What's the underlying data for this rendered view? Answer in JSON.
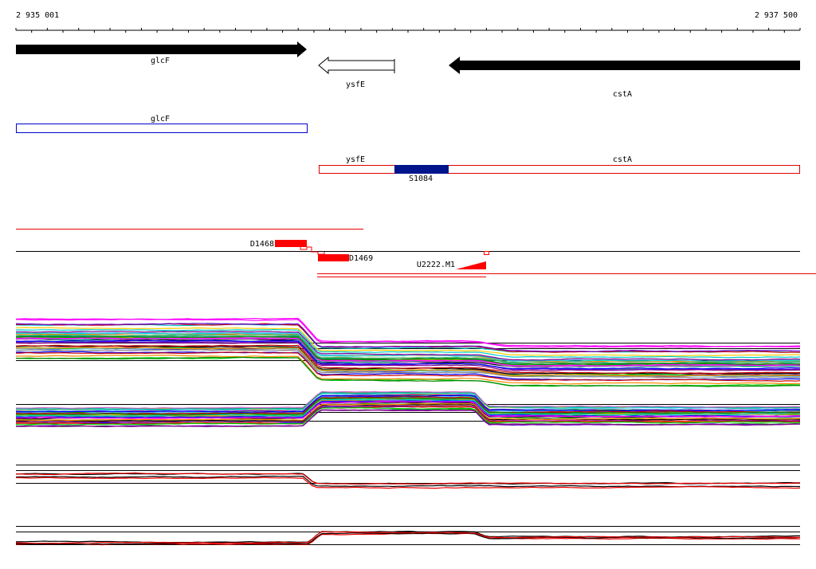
{
  "axis": {
    "start": "2 935 001",
    "end": "2 937 500"
  },
  "genes": [
    {
      "label": "glcF"
    },
    {
      "label": "ysfE"
    },
    {
      "label": "cstA"
    }
  ],
  "transcripts": [
    {
      "label": "glcF"
    },
    {
      "label": "ysfE"
    },
    {
      "label": "cstA"
    },
    {
      "label": "S1084"
    }
  ],
  "features": [
    {
      "label": "D1468"
    },
    {
      "label": "D1469"
    },
    {
      "label": "U2222.M1"
    }
  ]
}
